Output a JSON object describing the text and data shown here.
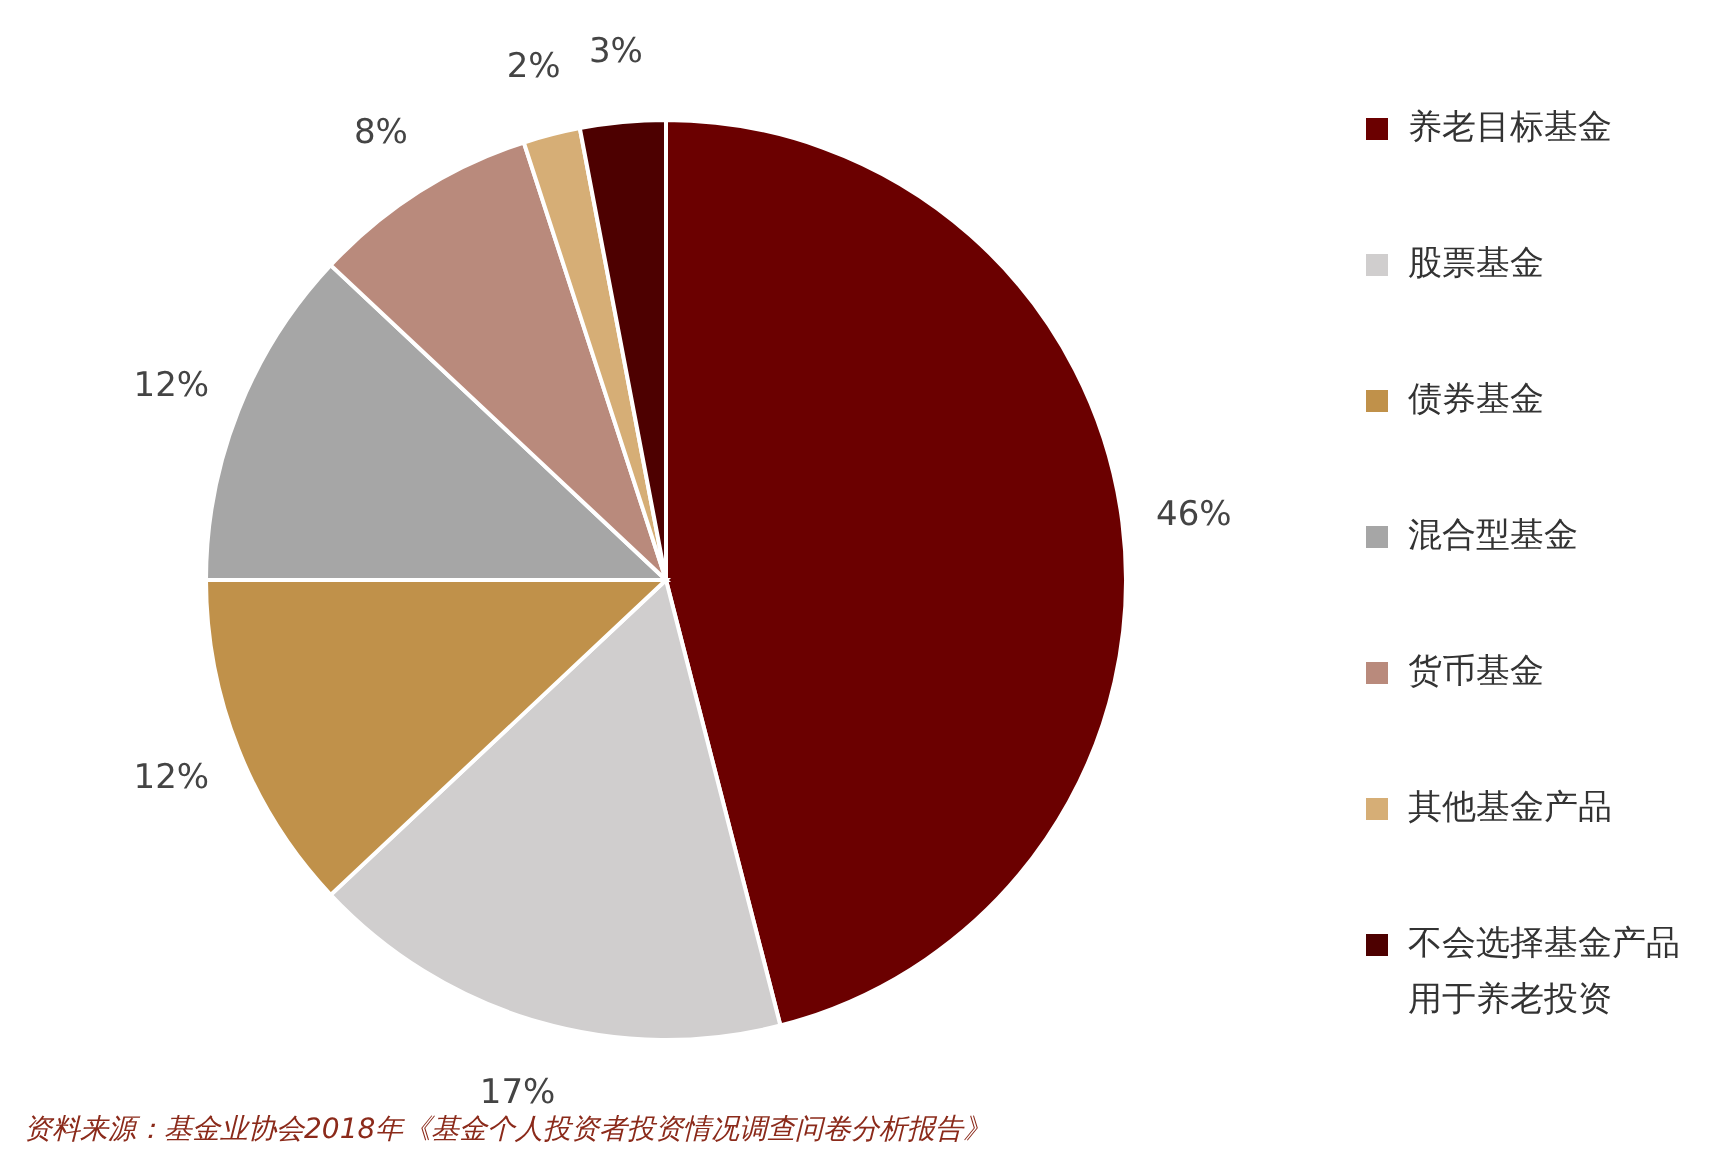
{
  "chart_data": {
    "type": "pie",
    "categories": [
      "养老目标基金",
      "股票基金",
      "债券基金",
      "混合型基金",
      "货币基金",
      "其他基金产品",
      "不会选择基金产品用于养老投资"
    ],
    "values": [
      46,
      17,
      12,
      12,
      8,
      2,
      3
    ],
    "colors": [
      "#6b0000",
      "#d0cece",
      "#c0914a",
      "#a6a6a6",
      "#b98a7c",
      "#d6ae76",
      "#4d0000"
    ],
    "value_labels": [
      "46%",
      "17%",
      "12%",
      "12%",
      "8%",
      "2%",
      "3%"
    ],
    "legend": "right",
    "annotations": [
      "资料来源：基金业协会2018年《基金个人投资者投资情况调查问卷分析报告》"
    ]
  }
}
